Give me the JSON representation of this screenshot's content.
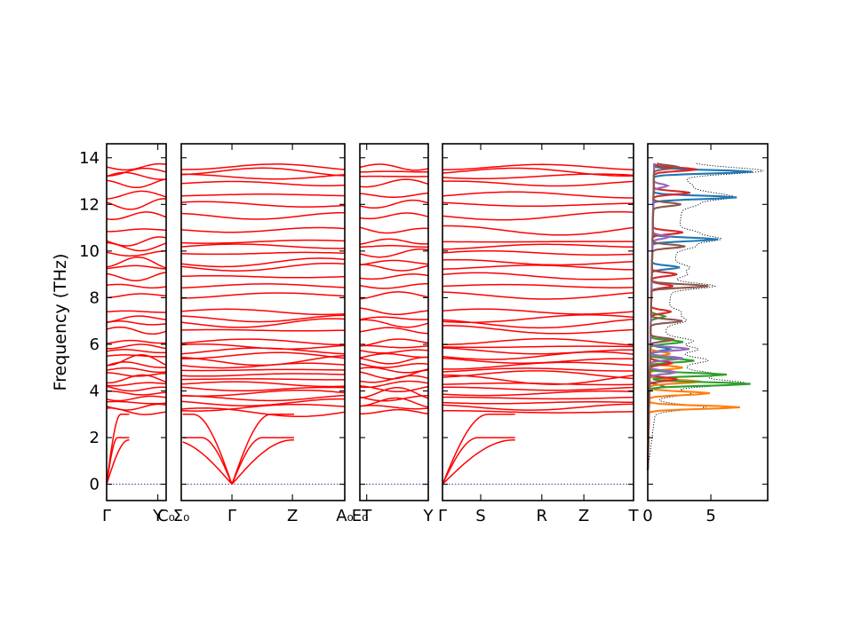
{
  "chart_data": {
    "type": "line",
    "ylabel": "Frequency (THz)",
    "ylim": [
      -0.7,
      14.6
    ],
    "yticks": [
      0,
      2,
      4,
      6,
      8,
      10,
      12,
      14
    ],
    "band_color": "#ff0000",
    "zero_line_color": "#2b2bb0",
    "band_panels": [
      {
        "segments": [
          [
            "Γ",
            "Y"
          ],
          [
            "Y",
            "C₀"
          ]
        ],
        "ticks": [
          {
            "label": "Γ",
            "pos": 0.0
          },
          {
            "label": "Y",
            "pos": 0.86
          },
          {
            "label": "C₀",
            "pos": 1.0
          }
        ],
        "edge_labels": {
          "left": "",
          "right": "C₀"
        }
      },
      {
        "segments": [
          [
            "Σ₀",
            "Γ"
          ],
          [
            "Γ",
            "Z"
          ],
          [
            "Z",
            "A₀"
          ]
        ],
        "ticks": [
          {
            "label": "Σ₀",
            "pos": 0.0
          },
          {
            "label": "Γ",
            "pos": 0.31
          },
          {
            "label": "Z",
            "pos": 0.68
          },
          {
            "label": "A₀",
            "pos": 1.0
          }
        ],
        "edge_labels": {
          "left": "Σ₀",
          "right": "A₀"
        }
      },
      {
        "segments": [
          [
            "E₀",
            "T"
          ],
          [
            "T",
            "Y"
          ]
        ],
        "ticks": [
          {
            "label": "E₀",
            "pos": 0.0
          },
          {
            "label": "T",
            "pos": 0.1
          },
          {
            "label": "Y",
            "pos": 1.0
          }
        ],
        "edge_labels": {
          "left": "E₀",
          "right": ""
        }
      },
      {
        "segments": [
          [
            "Γ",
            "S"
          ],
          [
            "S",
            "R"
          ],
          [
            "R",
            "Z"
          ],
          [
            "Z",
            "T"
          ]
        ],
        "ticks": [
          {
            "label": "Γ",
            "pos": 0.0
          },
          {
            "label": "S",
            "pos": 0.2
          },
          {
            "label": "R",
            "pos": 0.52
          },
          {
            "label": "Z",
            "pos": 0.74
          },
          {
            "label": "T",
            "pos": 1.0
          }
        ],
        "edge_labels": {
          "left": "",
          "right": ""
        }
      }
    ],
    "band_levels_thz": [
      3.1,
      3.3,
      3.5,
      3.7,
      3.9,
      4.1,
      4.3,
      4.5,
      4.7,
      4.9,
      5.1,
      5.3,
      5.5,
      5.7,
      5.9,
      6.1,
      6.6,
      6.9,
      7.1,
      7.4,
      8.1,
      8.5,
      8.9,
      9.3,
      9.5,
      9.9,
      10.2,
      10.4,
      10.9,
      11.5,
      12.0,
      12.4,
      12.9,
      13.2,
      13.4,
      13.6
    ],
    "dos_panel": {
      "xlim": [
        0,
        9.5
      ],
      "xticks": [
        0,
        5
      ],
      "series": [
        {
          "color": "#1f77b4",
          "peaks": [
            [
              13.4,
              7.8
            ],
            [
              12.3,
              6.6
            ],
            [
              10.5,
              5.2
            ],
            [
              9.3,
              2.2
            ],
            [
              5.8,
              1.5
            ],
            [
              4.2,
              1.1
            ]
          ]
        },
        {
          "color": "#ff7f0e",
          "peaks": [
            [
              3.3,
              7.2
            ],
            [
              3.9,
              4.8
            ],
            [
              4.4,
              4.1
            ],
            [
              5.0,
              2.6
            ],
            [
              5.6,
              1.6
            ]
          ]
        },
        {
          "color": "#2ca02c",
          "peaks": [
            [
              4.3,
              8.0
            ],
            [
              4.7,
              6.1
            ],
            [
              5.3,
              3.5
            ],
            [
              6.1,
              2.6
            ],
            [
              7.2,
              1.1
            ]
          ]
        },
        {
          "color": "#d62728",
          "peaks": [
            [
              13.5,
              3.4
            ],
            [
              12.5,
              2.9
            ],
            [
              10.8,
              2.4
            ],
            [
              9.0,
              2.0
            ],
            [
              8.5,
              1.7
            ],
            [
              7.4,
              1.6
            ],
            [
              5.2,
              1.8
            ],
            [
              4.5,
              2.2
            ]
          ]
        },
        {
          "color": "#9467bd",
          "peaks": [
            [
              5.8,
              3.1
            ],
            [
              5.4,
              2.6
            ],
            [
              4.8,
              2.1
            ],
            [
              10.6,
              1.3
            ],
            [
              12.8,
              1.1
            ]
          ]
        },
        {
          "color": "#8c564b",
          "peaks": [
            [
              8.5,
              4.5
            ],
            [
              10.2,
              2.6
            ],
            [
              12.0,
              2.2
            ],
            [
              13.6,
              2.0
            ],
            [
              7.0,
              2.5
            ],
            [
              6.2,
              1.9
            ]
          ]
        }
      ],
      "total_color": "#000000"
    }
  }
}
